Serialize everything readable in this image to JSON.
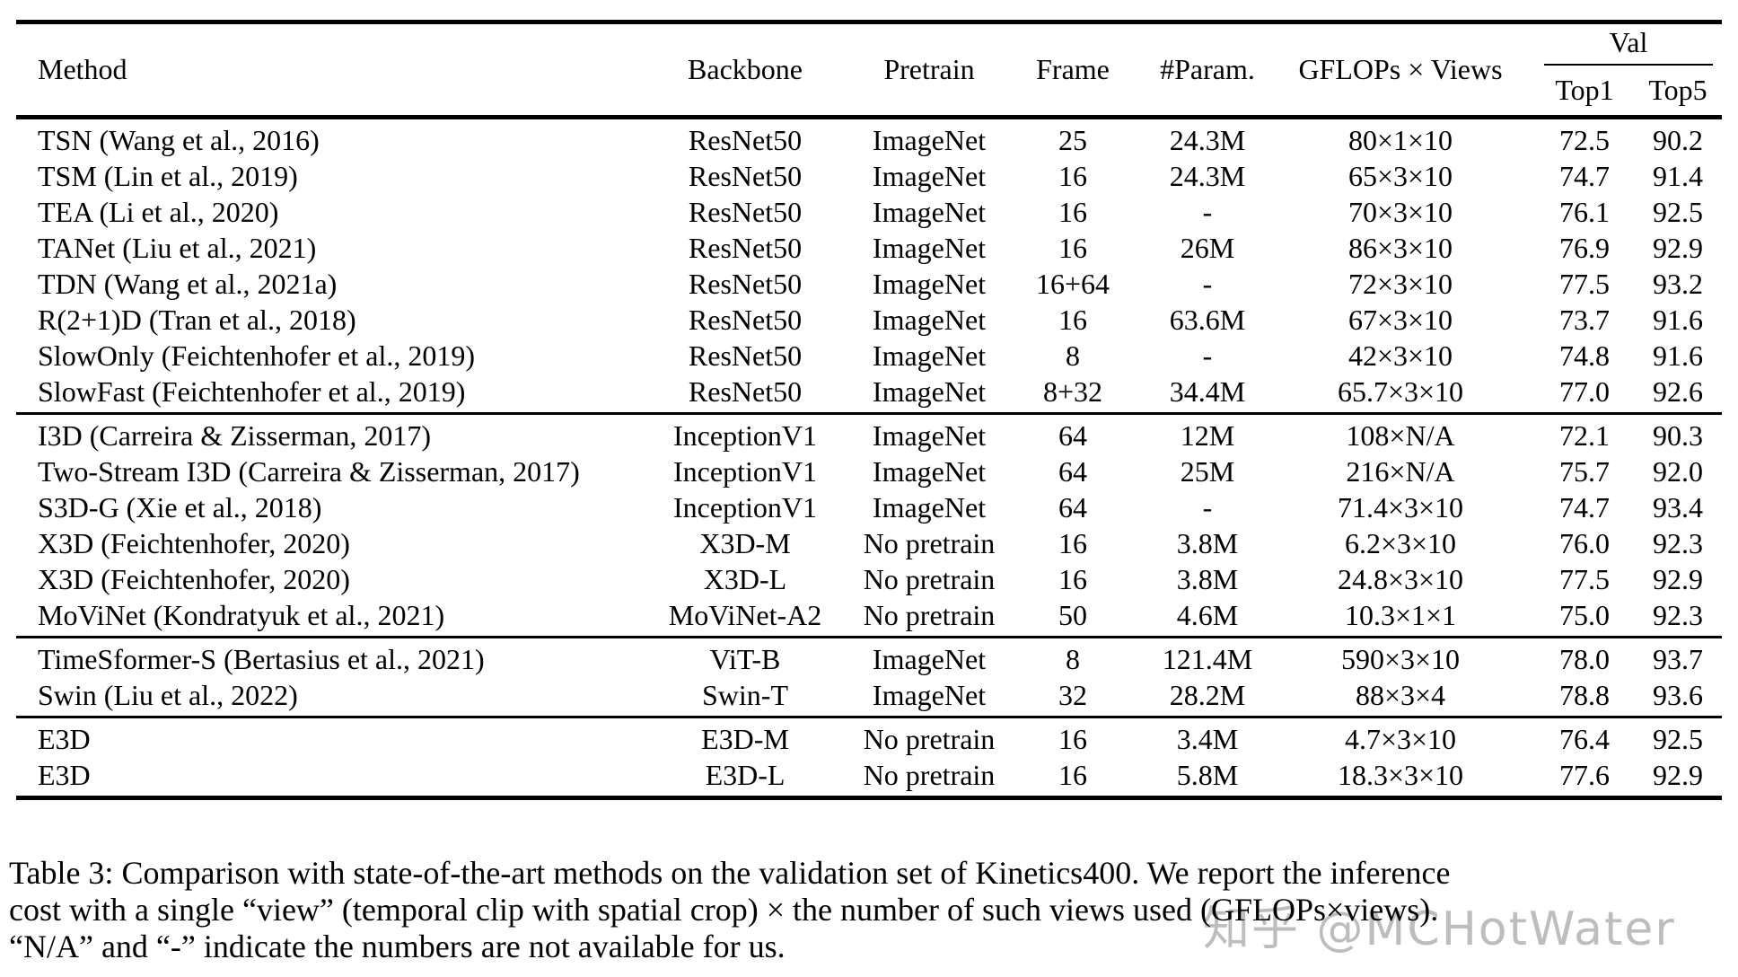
{
  "table": {
    "column_keys": [
      "method",
      "backbone",
      "pretrain",
      "frame",
      "params",
      "gflops_views",
      "top1",
      "top5"
    ],
    "headers": {
      "method": "Method",
      "backbone": "Backbone",
      "pretrain": "Pretrain",
      "frame": "Frame",
      "params": "#Param.",
      "gflops_views": "GFLOPs × Views",
      "val_group": "Val",
      "top1": "Top1",
      "top5": "Top5"
    },
    "groups": [
      {
        "rows": [
          [
            "TSN (Wang et al., 2016)",
            "ResNet50",
            "ImageNet",
            "25",
            "24.3M",
            "80×1×10",
            "72.5",
            "90.2"
          ],
          [
            "TSM (Lin et al., 2019)",
            "ResNet50",
            "ImageNet",
            "16",
            "24.3M",
            "65×3×10",
            "74.7",
            "91.4"
          ],
          [
            "TEA (Li et al., 2020)",
            "ResNet50",
            "ImageNet",
            "16",
            "-",
            "70×3×10",
            "76.1",
            "92.5"
          ],
          [
            "TANet (Liu et al., 2021)",
            "ResNet50",
            "ImageNet",
            "16",
            "26M",
            "86×3×10",
            "76.9",
            "92.9"
          ],
          [
            "TDN (Wang et al., 2021a)",
            "ResNet50",
            "ImageNet",
            "16+64",
            "-",
            "72×3×10",
            "77.5",
            "93.2"
          ],
          [
            "R(2+1)D (Tran et al., 2018)",
            "ResNet50",
            "ImageNet",
            "16",
            "63.6M",
            "67×3×10",
            "73.7",
            "91.6"
          ],
          [
            "SlowOnly (Feichtenhofer et al., 2019)",
            "ResNet50",
            "ImageNet",
            "8",
            "-",
            "42×3×10",
            "74.8",
            "91.6"
          ],
          [
            "SlowFast (Feichtenhofer et al., 2019)",
            "ResNet50",
            "ImageNet",
            "8+32",
            "34.4M",
            "65.7×3×10",
            "77.0",
            "92.6"
          ]
        ]
      },
      {
        "rows": [
          [
            "I3D (Carreira & Zisserman, 2017)",
            "InceptionV1",
            "ImageNet",
            "64",
            "12M",
            "108×N/A",
            "72.1",
            "90.3"
          ],
          [
            "Two-Stream I3D (Carreira & Zisserman, 2017)",
            "InceptionV1",
            "ImageNet",
            "64",
            "25M",
            "216×N/A",
            "75.7",
            "92.0"
          ],
          [
            "S3D-G (Xie et al., 2018)",
            "InceptionV1",
            "ImageNet",
            "64",
            "-",
            "71.4×3×10",
            "74.7",
            "93.4"
          ],
          [
            "X3D (Feichtenhofer, 2020)",
            "X3D-M",
            "No pretrain",
            "16",
            "3.8M",
            "6.2×3×10",
            "76.0",
            "92.3"
          ],
          [
            "X3D (Feichtenhofer, 2020)",
            "X3D-L",
            "No pretrain",
            "16",
            "3.8M",
            "24.8×3×10",
            "77.5",
            "92.9"
          ],
          [
            "MoViNet (Kondratyuk et al., 2021)",
            "MoViNet-A2",
            "No pretrain",
            "50",
            "4.6M",
            "10.3×1×1",
            "75.0",
            "92.3"
          ]
        ]
      },
      {
        "rows": [
          [
            "TimeSformer-S (Bertasius et al., 2021)",
            "ViT-B",
            "ImageNet",
            "8",
            "121.4M",
            "590×3×10",
            "78.0",
            "93.7"
          ],
          [
            "Swin (Liu et al., 2022)",
            "Swin-T",
            "ImageNet",
            "32",
            "28.2M",
            "88×3×4",
            "78.8",
            "93.6"
          ]
        ]
      },
      {
        "rows": [
          [
            "E3D",
            "E3D-M",
            "No pretrain",
            "16",
            "3.4M",
            "4.7×3×10",
            "76.4",
            "92.5"
          ],
          [
            "E3D",
            "E3D-L",
            "No pretrain",
            "16",
            "5.8M",
            "18.3×3×10",
            "77.6",
            "92.9"
          ]
        ]
      }
    ]
  },
  "caption": {
    "line1": "Table 3: Comparison with state-of-the-art methods on the validation set of Kinetics400.  We report the inference",
    "line2": "cost with a single “view” (temporal clip with spatial crop) × the number of such views used (GFLOPs×views).",
    "line3": "“N/A” and “-” indicate the numbers are not available for us."
  },
  "watermark": {
    "text": "知乎 @MCHotWater",
    "color": "#bdbdbd"
  }
}
